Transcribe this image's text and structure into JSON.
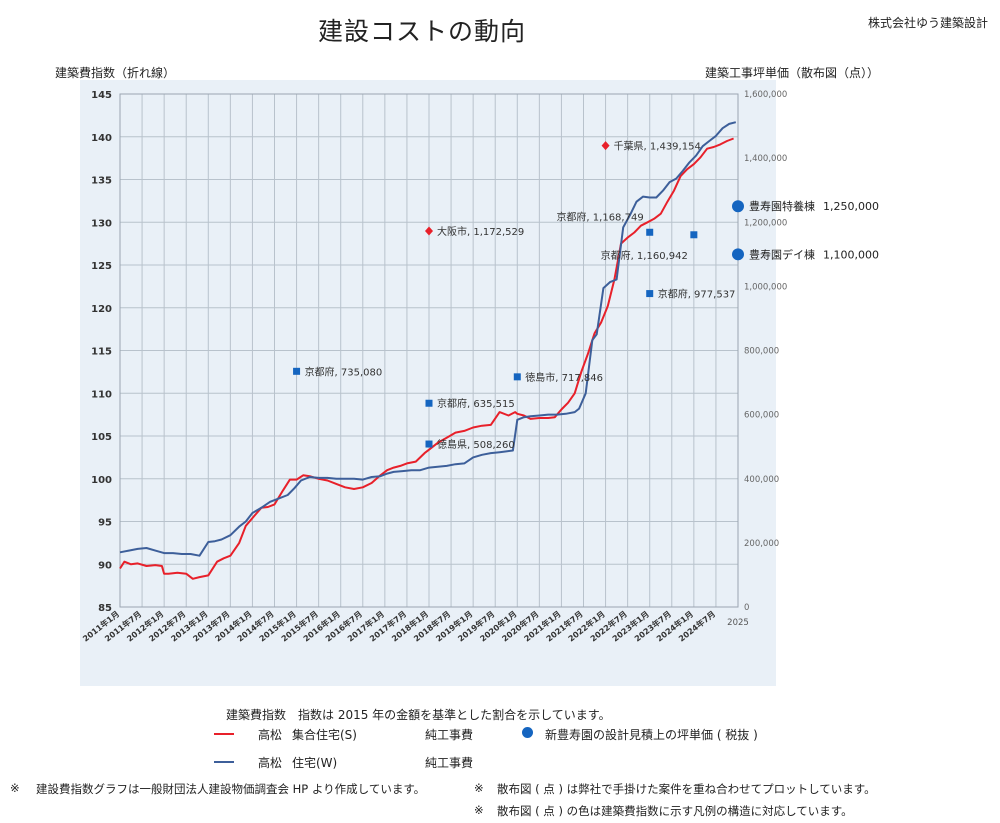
{
  "header": {
    "title": "建設コストの動向",
    "company": "株式会社ゆう建築設計"
  },
  "axes": {
    "left_label": "建築費指数（折れ線）",
    "right_label": "建築工事坪単価（散布図（点））"
  },
  "legend": {
    "index_title": "建築費指数",
    "index_desc": "指数は 2015 年の金額を基準とした割合を示しています。",
    "series1": {
      "city": "高松",
      "name": "集合住宅(S)",
      "cost": "純工事費",
      "color": "#e8202a"
    },
    "series2": {
      "city": "高松",
      "name": "住宅(W)",
      "cost": "純工事費",
      "color": "#3d5f9a"
    },
    "scatter": {
      "label": "新豊寿園の設計見積上の坪単価 ( 税抜 )",
      "color": "#1565c0"
    }
  },
  "notes": {
    "n1_mark": "※",
    "n1": "建設費指数グラフは一般財団法人建設物価調査会 HP より作成しています。",
    "n2_mark": "※",
    "n2": "散布図 ( 点 ) は弊社で手掛けた案件を重ね合わせてプロットしています。",
    "n3_mark": "※",
    "n3": "散布図 ( 点 ) の色は建築費指数に示す凡例の構造に対応しています。"
  },
  "colors": {
    "plot_bg": "#e9f0f7",
    "grid": "#b8c2cc",
    "red": "#e8202a",
    "blue_line": "#3d5f9a",
    "blue_point": "#1565c0"
  },
  "chart_data": {
    "type": "line",
    "left_axis": {
      "min": 85,
      "max": 145,
      "ticks": [
        85,
        90,
        95,
        100,
        105,
        110,
        115,
        120,
        125,
        130,
        135,
        140,
        145
      ]
    },
    "right_axis": {
      "min": 0,
      "max": 1600000,
      "ticks": [
        0,
        200000,
        400000,
        600000,
        800000,
        1000000,
        1200000,
        1400000,
        1600000
      ],
      "tick_labels": [
        "0",
        "200,000",
        "400,000",
        "600,000",
        "800,000",
        "1,000,000",
        "1,200,000",
        "1,400,000",
        "1,600,000"
      ]
    },
    "x_ticks": [
      "2011年1月",
      "2011年7月",
      "2012年1月",
      "2012年7月",
      "2013年1月",
      "2013年7月",
      "2014年1月",
      "2014年7月",
      "2015年1月",
      "2015年7月",
      "2016年1月",
      "2016年7月",
      "2017年1月",
      "2017年7月",
      "2018年1月",
      "2018年7月",
      "2019年1月",
      "2019年7月",
      "2020年1月",
      "2020年7月",
      "2021年1月",
      "2021年7月",
      "2022年1月",
      "2022年7月",
      "2023年1月",
      "2023年7月",
      "2024年1月",
      "2024年7月",
      "2025"
    ],
    "series": [
      {
        "name": "高松 集合住宅(S) 純工事費",
        "color": "#e8202a",
        "x": [
          2011.0,
          2011.1,
          2011.25,
          2011.4,
          2011.6,
          2011.8,
          2011.95,
          2012.0,
          2012.1,
          2012.3,
          2012.5,
          2012.65,
          2012.8,
          2013.0,
          2013.2,
          2013.35,
          2013.5,
          2013.7,
          2013.85,
          2014.0,
          2014.2,
          2014.35,
          2014.5,
          2014.7,
          2014.85,
          2015.0,
          2015.15,
          2015.3,
          2015.5,
          2015.7,
          2015.9,
          2016.1,
          2016.3,
          2016.5,
          2016.7,
          2016.9,
          2017.05,
          2017.2,
          2017.35,
          2017.5,
          2017.7,
          2017.9,
          2018.0,
          2018.2,
          2018.4,
          2018.6,
          2018.8,
          2019.0,
          2019.2,
          2019.4,
          2019.6,
          2019.8,
          2019.95,
          2020.0,
          2020.15,
          2020.3,
          2020.5,
          2020.7,
          2020.85,
          2021.0,
          2021.15,
          2021.3,
          2021.45,
          2021.6,
          2021.75,
          2021.9,
          2022.05,
          2022.2,
          2022.35,
          2022.5,
          2022.65,
          2022.8,
          2022.95,
          2023.1,
          2023.25,
          2023.4,
          2023.55,
          2023.7,
          2023.85,
          2024.0,
          2024.15,
          2024.3,
          2024.45,
          2024.6,
          2024.75,
          2024.9
        ],
        "values": [
          89.5,
          90.3,
          90.0,
          90.1,
          89.8,
          89.9,
          89.8,
          88.9,
          88.9,
          89.0,
          88.9,
          88.3,
          88.5,
          88.7,
          90.3,
          90.7,
          91.0,
          92.5,
          94.5,
          95.4,
          96.6,
          96.7,
          97.0,
          98.7,
          99.9,
          99.9,
          100.4,
          100.3,
          100.0,
          99.8,
          99.4,
          99.0,
          98.8,
          99.0,
          99.5,
          100.4,
          101.0,
          101.3,
          101.5,
          101.8,
          102.0,
          103.0,
          103.4,
          104.2,
          104.8,
          105.4,
          105.6,
          106.0,
          106.2,
          106.3,
          107.8,
          107.4,
          107.8,
          107.6,
          107.4,
          107.0,
          107.1,
          107.1,
          107.2,
          108.1,
          108.9,
          110.0,
          112.5,
          114.6,
          117.0,
          118.3,
          120.2,
          123.3,
          127.5,
          128.2,
          128.8,
          129.6,
          130.0,
          130.4,
          131.0,
          132.4,
          133.7,
          135.4,
          136.2,
          136.8,
          137.6,
          138.6,
          138.8,
          139.1,
          139.5,
          139.8
        ]
      },
      {
        "name": "高松 住宅(W) 純工事費",
        "color": "#3d5f9a",
        "x": [
          2011.0,
          2011.2,
          2011.4,
          2011.6,
          2011.8,
          2012.0,
          2012.2,
          2012.4,
          2012.6,
          2012.8,
          2013.0,
          2013.15,
          2013.3,
          2013.5,
          2013.7,
          2013.85,
          2014.0,
          2014.2,
          2014.4,
          2014.6,
          2014.8,
          2014.95,
          2015.1,
          2015.3,
          2015.5,
          2015.7,
          2015.9,
          2016.1,
          2016.3,
          2016.5,
          2016.7,
          2016.9,
          2017.05,
          2017.2,
          2017.4,
          2017.6,
          2017.8,
          2018.0,
          2018.2,
          2018.4,
          2018.6,
          2018.8,
          2019.0,
          2019.2,
          2019.4,
          2019.6,
          2019.75,
          2019.9,
          2020.0,
          2020.15,
          2020.3,
          2020.5,
          2020.7,
          2020.9,
          2021.1,
          2021.3,
          2021.4,
          2021.55,
          2021.7,
          2021.8,
          2021.95,
          2022.1,
          2022.25,
          2022.4,
          2022.55,
          2022.7,
          2022.85,
          2023.0,
          2023.15,
          2023.3,
          2023.45,
          2023.6,
          2023.75,
          2023.9,
          2024.05,
          2024.2,
          2024.35,
          2024.5,
          2024.65,
          2024.8,
          2024.95
        ],
        "values": [
          91.4,
          91.6,
          91.8,
          91.9,
          91.6,
          91.3,
          91.3,
          91.2,
          91.2,
          91.0,
          92.6,
          92.7,
          92.9,
          93.4,
          94.4,
          95.0,
          96.0,
          96.6,
          97.3,
          97.7,
          98.1,
          98.9,
          99.8,
          100.2,
          100.1,
          100.1,
          100.0,
          100.0,
          100.0,
          99.9,
          100.2,
          100.3,
          100.6,
          100.8,
          100.9,
          101.0,
          101.0,
          101.3,
          101.4,
          101.5,
          101.7,
          101.8,
          102.5,
          102.8,
          103.0,
          103.1,
          103.2,
          103.3,
          106.9,
          107.2,
          107.3,
          107.4,
          107.5,
          107.5,
          107.6,
          107.8,
          108.2,
          110.0,
          116.2,
          116.9,
          122.3,
          123.0,
          123.3,
          129.4,
          130.8,
          132.4,
          133.0,
          132.9,
          132.9,
          133.7,
          134.7,
          135.1,
          136.0,
          137.0,
          137.8,
          138.9,
          139.5,
          140.1,
          141.0,
          141.5,
          141.7
        ]
      }
    ],
    "scatter_points": [
      {
        "x": 2015.0,
        "value": 735080,
        "label": "京都府, 735,080",
        "color": "#1565c0",
        "shape": "square"
      },
      {
        "x": 2018.0,
        "value": 1172529,
        "label": "大阪市, 1,172,529",
        "color": "#e8202a",
        "shape": "diamond"
      },
      {
        "x": 2018.0,
        "value": 635515,
        "label": "京都府, 635,515",
        "color": "#1565c0",
        "shape": "square"
      },
      {
        "x": 2018.0,
        "value": 508260,
        "label": "徳島県, 508,260",
        "color": "#1565c0",
        "shape": "square"
      },
      {
        "x": 2020.0,
        "value": 717846,
        "label": "徳島市, 717,846",
        "color": "#1565c0",
        "shape": "square"
      },
      {
        "x": 2022.0,
        "value": 1439154,
        "label": "千葉県, 1,439,154",
        "color": "#e8202a",
        "shape": "diamond"
      },
      {
        "x": 2023.0,
        "value": 1168749,
        "label": "京都府, 1,168,749",
        "color": "#1565c0",
        "shape": "square"
      },
      {
        "x": 2024.0,
        "value": 1160942,
        "label": "京都府, 1,160,942",
        "color": "#1565c0",
        "shape": "square"
      },
      {
        "x": 2023.0,
        "value": 977537,
        "label": "京都府, 977,537",
        "color": "#1565c0",
        "shape": "square"
      }
    ],
    "highlight_points": [
      {
        "value": 1250000,
        "label": "豊寿園特養棟",
        "value_label": "1,250,000"
      },
      {
        "value": 1100000,
        "label": "豊寿園デイ棟",
        "value_label": "1,100,000"
      }
    ]
  }
}
